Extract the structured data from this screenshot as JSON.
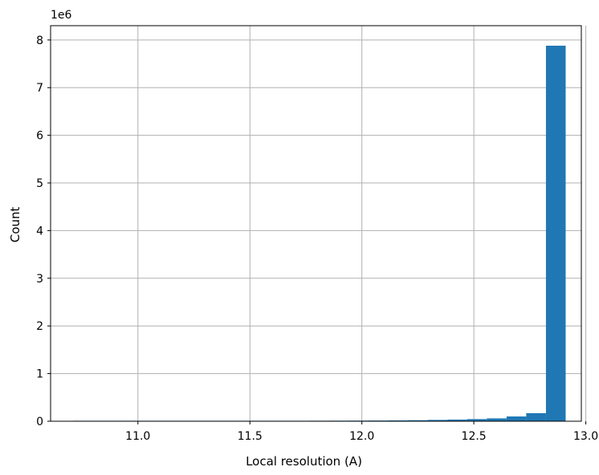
{
  "chart_data": {
    "type": "bar",
    "title": "",
    "xlabel": "Local resolution (A)",
    "ylabel": "Count",
    "y_offset_label": "1e6",
    "xlim": [
      10.61,
      12.98
    ],
    "ylim": [
      0,
      8.3
    ],
    "grid": true,
    "x_ticks": [
      {
        "value": 11.0,
        "label": "11.0"
      },
      {
        "value": 11.5,
        "label": "11.5"
      },
      {
        "value": 12.0,
        "label": "12.0"
      },
      {
        "value": 12.5,
        "label": "12.5"
      },
      {
        "value": 13.0,
        "label": "13.0"
      }
    ],
    "y_ticks": [
      {
        "value": 0,
        "label": "0"
      },
      {
        "value": 1,
        "label": "1"
      },
      {
        "value": 2,
        "label": "2"
      },
      {
        "value": 3,
        "label": "3"
      },
      {
        "value": 4,
        "label": "4"
      },
      {
        "value": 5,
        "label": "5"
      },
      {
        "value": 6,
        "label": "6"
      },
      {
        "value": 7,
        "label": "7"
      },
      {
        "value": 8,
        "label": "8"
      }
    ],
    "bin_edges": [
      10.71,
      10.798,
      10.886,
      10.974,
      11.062,
      11.15,
      11.238,
      11.326,
      11.414,
      11.502,
      11.59,
      11.678,
      11.766,
      11.854,
      11.942,
      12.03,
      12.118,
      12.206,
      12.294,
      12.382,
      12.47,
      12.558,
      12.646,
      12.734,
      12.822,
      12.91
    ],
    "values": [
      0.001,
      0.001,
      0.001,
      0.001,
      0.001,
      0.002,
      0.002,
      0.003,
      0.004,
      0.005,
      0.006,
      0.008,
      0.011,
      0.012,
      0.013,
      0.015,
      0.018,
      0.022,
      0.028,
      0.035,
      0.045,
      0.06,
      0.1,
      0.17,
      7.88
    ],
    "bar_color": "#1f77b4",
    "grid_color": "#b0b0b0"
  }
}
